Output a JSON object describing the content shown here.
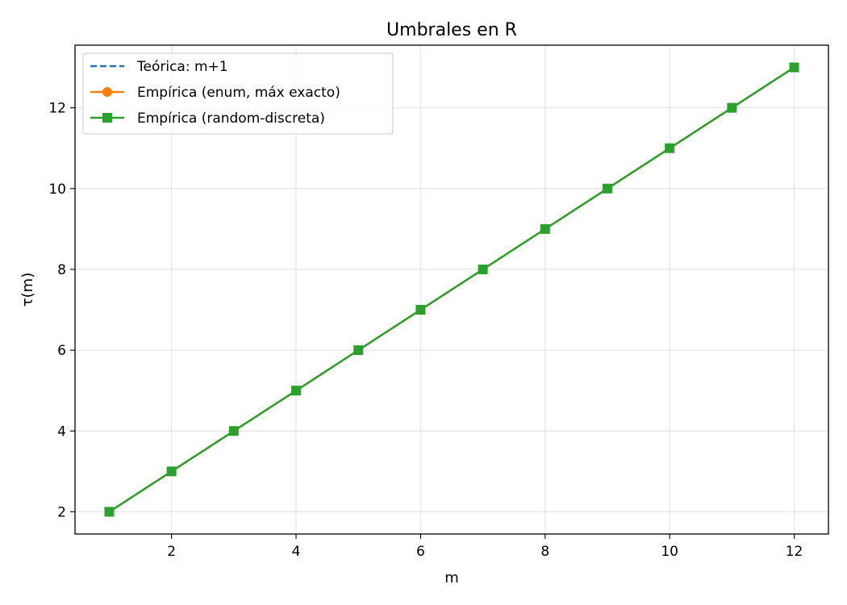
{
  "chart_data": {
    "type": "line",
    "title": "Umbrales en R",
    "xlabel": "m",
    "ylabel": "τ(m)",
    "xlim": [
      0.45,
      12.55
    ],
    "ylim": [
      1.45,
      13.55
    ],
    "xticks": [
      2,
      4,
      6,
      8,
      10,
      12
    ],
    "yticks": [
      2,
      4,
      6,
      8,
      10,
      12
    ],
    "grid": true,
    "legend_position": "top-left",
    "x": [
      1,
      2,
      3,
      4,
      5,
      6,
      7,
      8,
      9,
      10,
      11,
      12
    ],
    "series": [
      {
        "name": "Teórica: m+1",
        "values": [
          2,
          3,
          4,
          5,
          6,
          7,
          8,
          9,
          10,
          11,
          12,
          13
        ],
        "color": "#1f77b4",
        "style": "dashed",
        "marker": "none"
      },
      {
        "name": "Empírica (enum, máx exacto)",
        "values": [
          2,
          3,
          4,
          5,
          6,
          7,
          8,
          9,
          10,
          11,
          12,
          13
        ],
        "color": "#ff7f0e",
        "style": "solid",
        "marker": "circle"
      },
      {
        "name": "Empírica (random-discreta)",
        "values": [
          2,
          3,
          4,
          5,
          6,
          7,
          8,
          9,
          10,
          11,
          12,
          13
        ],
        "color": "#2ca02c",
        "style": "solid",
        "marker": "square"
      }
    ]
  }
}
